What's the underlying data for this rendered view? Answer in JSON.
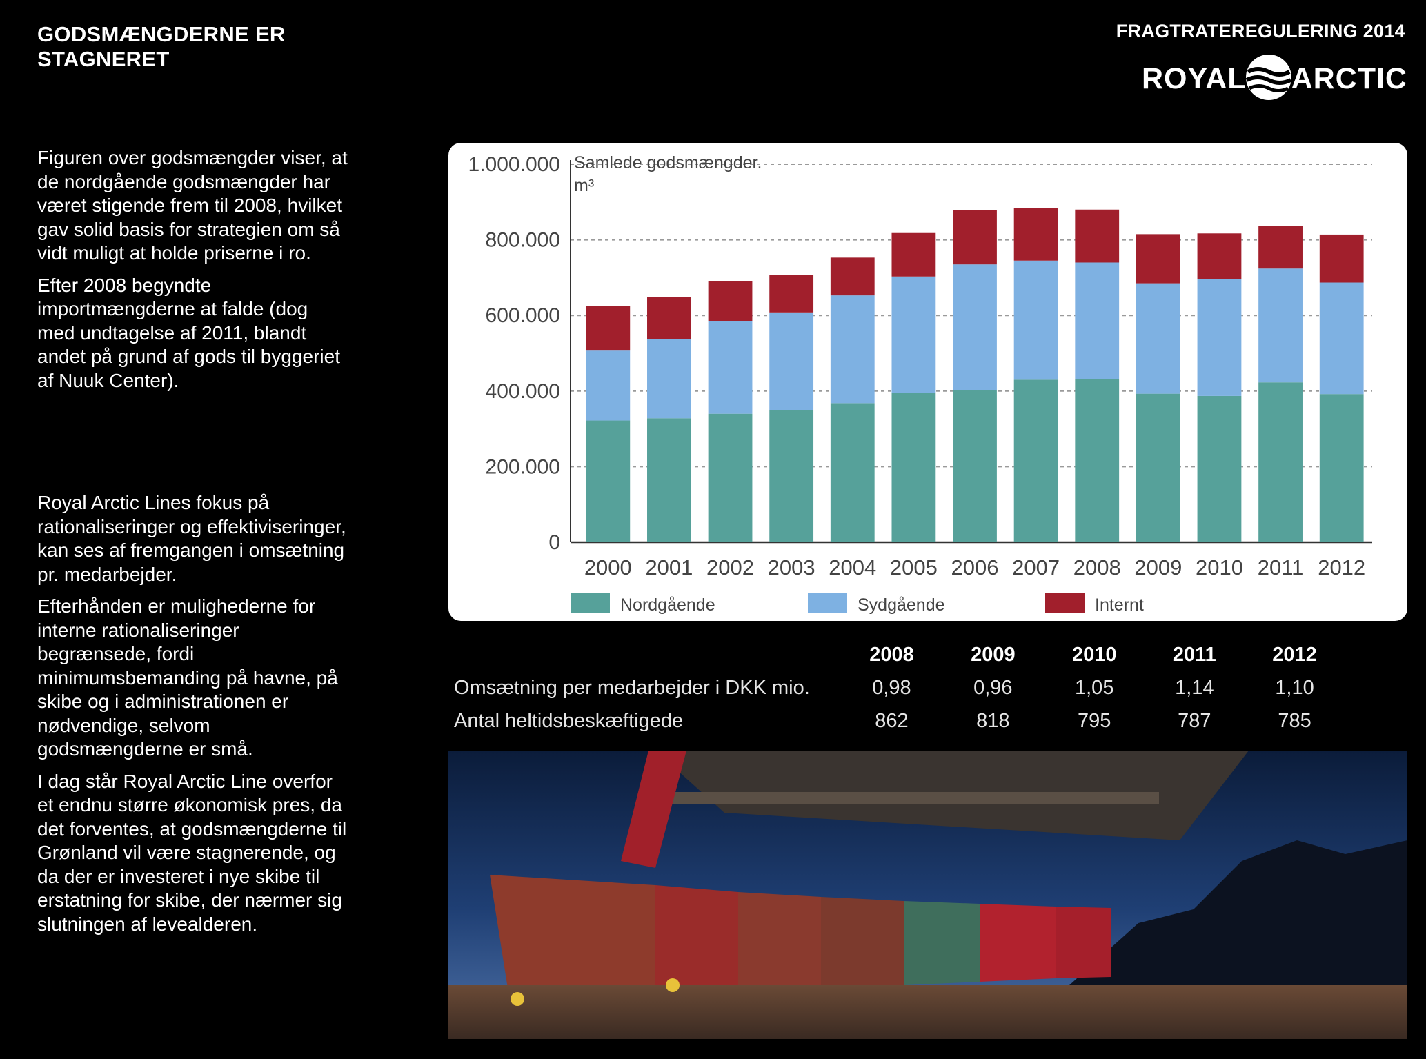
{
  "header": {
    "title": "GODSMÆNGDERNE ER STAGNERET",
    "report_label": "FRAGTRATEREGULERING 2014",
    "logo_left": "ROYAL",
    "logo_right": "ARCTIC",
    "logo_icon": "wave-circle-icon"
  },
  "text_blocks": [
    {
      "paragraphs": [
        "Figuren over godsmængder viser, at de nordgående godsmængder har været stigende frem til 2008, hvilket gav solid basis for strategien om så vidt muligt at holde priserne i ro.",
        "Efter 2008 begyndte importmængderne at falde (dog med undtagelse af 2011, blandt andet på grund af gods til byggeriet af Nuuk Center)."
      ]
    },
    {
      "paragraphs": [
        "Royal Arctic Lines fokus på rationaliseringer og effektiviseringer, kan ses af fremgangen i omsætning pr. medarbejder.",
        "Efterhånden er mulighederne for interne rationaliseringer begrænsede, fordi minimumsbemanding på havne, på skibe og i administrationen er nødvendige, selvom godsmængderne er små.",
        "I dag står Royal Arctic Line overfor et endnu større økonomisk pres, da det forventes, at godsmængderne til Grønland vil være stagnerende, og da der er investeret i nye skibe til erstatning for skibe, der nærmer sig slutningen af levealderen."
      ]
    }
  ],
  "chart_data": {
    "type": "bar",
    "stacked": true,
    "title": "Samlede godsmængder.",
    "unit": "m³",
    "categories": [
      "2000",
      "2001",
      "2002",
      "2003",
      "2004",
      "2005",
      "2006",
      "2007",
      "2008",
      "2009",
      "2010",
      "2011",
      "2012"
    ],
    "series": [
      {
        "name": "Nordgående",
        "color": "#56a19a",
        "values": [
          322000,
          328000,
          340000,
          350000,
          368000,
          395000,
          402000,
          430000,
          432000,
          393000,
          387000,
          423000,
          392000
        ]
      },
      {
        "name": "Sydgående",
        "color": "#7eb1e2",
        "values": [
          185000,
          210000,
          245000,
          258000,
          285000,
          308000,
          333000,
          315000,
          308000,
          292000,
          310000,
          301000,
          295000
        ]
      },
      {
        "name": "Internt",
        "color": "#a11f2c",
        "values": [
          118000,
          110000,
          105000,
          100000,
          100000,
          115000,
          143000,
          140000,
          140000,
          130000,
          120000,
          112000,
          127000
        ]
      }
    ],
    "ylim": [
      0,
      1000000
    ],
    "yticks": [
      0,
      200000,
      400000,
      600000,
      800000,
      1000000
    ],
    "ytick_labels": [
      "0",
      "200.000",
      "400.000",
      "600.000",
      "800.000",
      "1.000.000"
    ],
    "grid": true,
    "legend_position": "bottom"
  },
  "table": {
    "years": [
      "2008",
      "2009",
      "2010",
      "2011",
      "2012"
    ],
    "rows": [
      {
        "label": "Omsætning per medarbejder i DKK mio.",
        "values": [
          "0,98",
          "0,96",
          "1,05",
          "1,14",
          "1,10"
        ]
      },
      {
        "label": "Antal heltidsbeskæftigede",
        "values": [
          "862",
          "818",
          "795",
          "787",
          "785"
        ]
      }
    ]
  },
  "photo": {
    "subject": "containers-at-harbor-photo"
  }
}
